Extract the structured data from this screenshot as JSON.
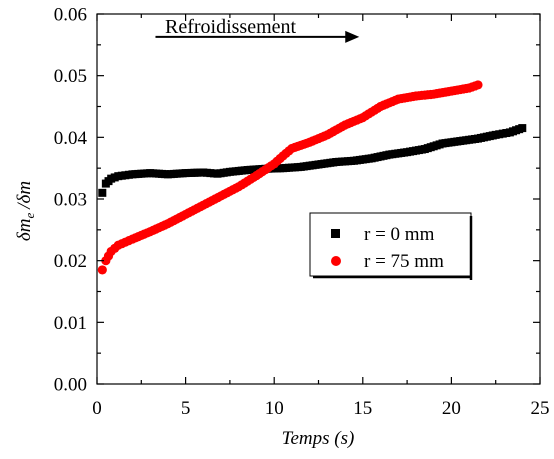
{
  "chart_data": {
    "type": "scatter",
    "title": "",
    "xlabel": "Temps (s)",
    "ylabel": "δm_e/δm",
    "xlim": [
      0,
      25
    ],
    "ylim": [
      0,
      0.06
    ],
    "x_ticks": [
      "0",
      "5",
      "10",
      "15",
      "20",
      "25"
    ],
    "y_ticks": [
      "0.00",
      "0.01",
      "0.02",
      "0.03",
      "0.04",
      "0.05",
      "0.06"
    ],
    "grid": false,
    "legend_position": "middle-right",
    "annotation": {
      "text": "Refroidissement",
      "arrow_from_x": 3.3,
      "arrow_to_x": 14.8,
      "arrow_y": 0.0563
    },
    "series": [
      {
        "name": "r = 0 mm",
        "color": "#000000",
        "marker": "square",
        "points": [
          [
            0.3,
            0.031
          ],
          [
            0.5,
            0.0325
          ],
          [
            0.8,
            0.0333
          ],
          [
            1.2,
            0.0337
          ],
          [
            2,
            0.034
          ],
          [
            3,
            0.0342
          ],
          [
            4,
            0.034
          ],
          [
            5,
            0.0342
          ],
          [
            6,
            0.0343
          ],
          [
            6.8,
            0.0341
          ],
          [
            7.5,
            0.0344
          ],
          [
            8.5,
            0.0347
          ],
          [
            9.5,
            0.0349
          ],
          [
            10.5,
            0.035
          ],
          [
            11.5,
            0.0352
          ],
          [
            12.5,
            0.0356
          ],
          [
            13.5,
            0.036
          ],
          [
            14.5,
            0.0362
          ],
          [
            15.5,
            0.0366
          ],
          [
            16.5,
            0.0372
          ],
          [
            17.5,
            0.0376
          ],
          [
            18.5,
            0.0381
          ],
          [
            19.5,
            0.039
          ],
          [
            20.5,
            0.0394
          ],
          [
            21.5,
            0.0398
          ],
          [
            22.5,
            0.0404
          ],
          [
            23.3,
            0.0408
          ],
          [
            24,
            0.0415
          ]
        ]
      },
      {
        "name": "r = 75 mm",
        "color": "#ff0000",
        "marker": "circle",
        "points": [
          [
            0.3,
            0.0185
          ],
          [
            0.5,
            0.02
          ],
          [
            0.8,
            0.0215
          ],
          [
            1.2,
            0.0225
          ],
          [
            2,
            0.0235
          ],
          [
            3,
            0.0247
          ],
          [
            4,
            0.026
          ],
          [
            5,
            0.0275
          ],
          [
            6,
            0.029
          ],
          [
            7,
            0.0305
          ],
          [
            8,
            0.032
          ],
          [
            9,
            0.0338
          ],
          [
            10,
            0.0357
          ],
          [
            10.5,
            0.037
          ],
          [
            11,
            0.0382
          ],
          [
            12,
            0.0392
          ],
          [
            13,
            0.0404
          ],
          [
            14,
            0.042
          ],
          [
            15,
            0.0432
          ],
          [
            16,
            0.045
          ],
          [
            17,
            0.0462
          ],
          [
            18,
            0.0467
          ],
          [
            19,
            0.047
          ],
          [
            20,
            0.0475
          ],
          [
            21,
            0.048
          ],
          [
            21.5,
            0.0485
          ]
        ]
      }
    ]
  }
}
